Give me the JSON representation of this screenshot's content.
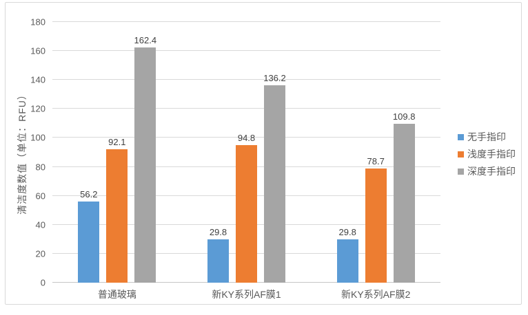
{
  "chart_data": {
    "type": "bar",
    "title": "",
    "categories": [
      "普通玻璃",
      "新KY系列AF膜1",
      "新KY系列AF膜2"
    ],
    "series": [
      {
        "name": "无手指印",
        "color": "#5B9BD5",
        "values": [
          56.2,
          29.8,
          29.8
        ]
      },
      {
        "name": "浅度手指印",
        "color": "#ED7D31",
        "values": [
          92.1,
          94.8,
          78.7
        ]
      },
      {
        "name": "深度手指印",
        "color": "#A5A5A5",
        "values": [
          162.4,
          136.2,
          109.8
        ]
      }
    ],
    "xlabel": "",
    "ylabel": "清洁度数值（单位：RFU）",
    "ylim": [
      0,
      180
    ],
    "ytick_step": 20,
    "yticks": [
      0,
      20,
      40,
      60,
      80,
      100,
      120,
      140,
      160,
      180
    ],
    "grid": true,
    "legend_position": "right",
    "data_labels": true
  },
  "colors": {
    "gridline": "#D9D9D9",
    "axis_line": "#C6C6C6",
    "chart_border": "#D9D9D9",
    "tick_text": "#595959",
    "data_label_text": "#404040",
    "series_blue": "#5B9BD5",
    "series_orange": "#ED7D31",
    "series_gray": "#A5A5A5"
  }
}
